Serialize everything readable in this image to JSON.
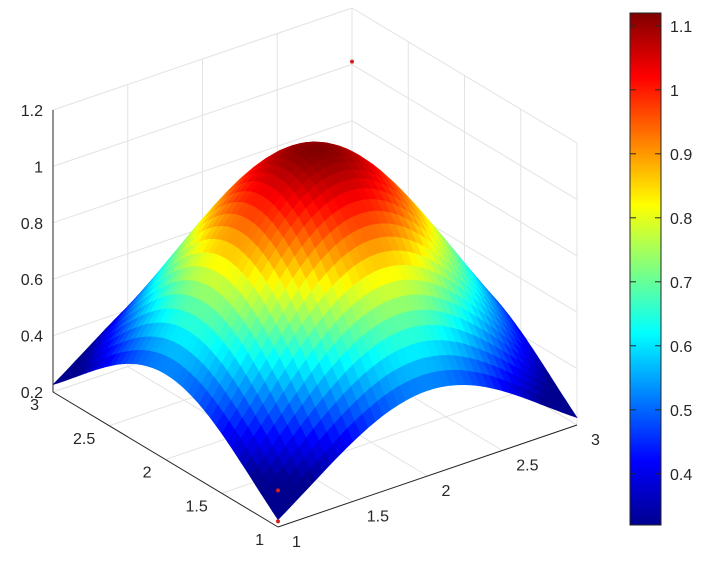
{
  "chart_data": {
    "type": "surface",
    "title": "",
    "xlabel": "",
    "ylabel": "",
    "zlabel": "",
    "grid": true,
    "colormap": "jet",
    "xlim": [
      1,
      3
    ],
    "ylim": [
      1,
      3
    ],
    "zlim": [
      0.2,
      1.2
    ],
    "x_ticks": [
      "1",
      "1.5",
      "2",
      "2.5",
      "3"
    ],
    "y_ticks": [
      "1",
      "1.5",
      "2",
      "2.5",
      "3"
    ],
    "z_ticks": [
      "0.2",
      "0.4",
      "0.6",
      "0.8",
      "1",
      "1.2"
    ],
    "colorbar": {
      "limits": [
        0.32,
        1.12
      ],
      "ticks": [
        "0.4",
        "0.5",
        "0.6",
        "0.7",
        "0.8",
        "0.9",
        "1",
        "1.1"
      ]
    },
    "surface_samples": {
      "x": [
        1,
        1.5,
        2,
        2.5,
        3
      ],
      "y": [
        1,
        1.5,
        2,
        2.5,
        3
      ],
      "z": [
        [
          0.32,
          0.55,
          0.75,
          0.55,
          0.34
        ],
        [
          0.55,
          0.82,
          0.98,
          0.8,
          0.52
        ],
        [
          0.74,
          0.98,
          1.12,
          0.98,
          0.72
        ],
        [
          0.55,
          0.82,
          0.98,
          0.82,
          0.56
        ],
        [
          0.33,
          0.54,
          0.74,
          0.55,
          0.3
        ]
      ]
    },
    "points": [
      {
        "x": 1,
        "y": 1,
        "z": 0.22
      },
      {
        "x": 1,
        "y": 1,
        "z": 0.33
      },
      {
        "x": 3,
        "y": 3,
        "z": 1.01
      }
    ]
  }
}
